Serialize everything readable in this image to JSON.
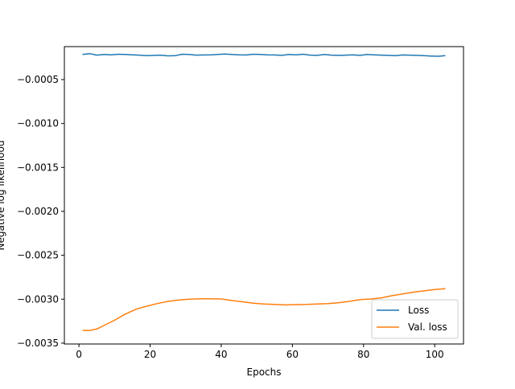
{
  "chart_data": {
    "type": "line",
    "title": "",
    "xlabel": "Epochs",
    "ylabel": "Negative log likelihood",
    "xlim": [
      -4.1,
      108.1
    ],
    "ylim": [
      -0.00351,
      -0.000125
    ],
    "x_ticks": [
      0,
      20,
      40,
      60,
      80,
      100
    ],
    "x_tick_labels": [
      "0",
      "20",
      "40",
      "60",
      "80",
      "100"
    ],
    "y_ticks": [
      -0.0005,
      -0.001,
      -0.0015,
      -0.002,
      -0.0025,
      -0.003,
      -0.0035
    ],
    "y_tick_labels": [
      "−0.0005",
      "−0.0010",
      "−0.0015",
      "−0.0020",
      "−0.0025",
      "−0.0030",
      "−0.0035"
    ],
    "grid": false,
    "legend_position": "lower-right",
    "series": [
      {
        "name": "Loss",
        "color": "#1f77b4",
        "x": [
          1,
          3,
          5,
          7,
          9,
          11,
          13,
          15,
          17,
          19,
          21,
          23,
          25,
          27,
          29,
          31,
          33,
          35,
          37,
          39,
          41,
          43,
          45,
          47,
          49,
          51,
          53,
          55,
          57,
          59,
          61,
          63,
          65,
          67,
          69,
          71,
          73,
          75,
          77,
          79,
          81,
          83,
          85,
          87,
          89,
          91,
          93,
          95,
          97,
          99,
          101,
          103
        ],
        "values": [
          -0.000215,
          -0.000205,
          -0.000222,
          -0.000215,
          -0.000218,
          -0.000212,
          -0.000215,
          -0.000218,
          -0.000222,
          -0.000228,
          -0.000225,
          -0.000222,
          -0.00023,
          -0.000228,
          -0.000212,
          -0.000215,
          -0.000222,
          -0.00022,
          -0.000218,
          -0.000215,
          -0.00021,
          -0.000215,
          -0.000218,
          -0.00022,
          -0.000212,
          -0.000215,
          -0.000218,
          -0.00022,
          -0.000225,
          -0.000215,
          -0.000218,
          -0.000212,
          -0.000222,
          -0.000225,
          -0.000215,
          -0.000222,
          -0.000225,
          -0.000222,
          -0.000218,
          -0.000225,
          -0.000215,
          -0.000218,
          -0.000222,
          -0.000225,
          -0.000228,
          -0.00022,
          -0.000222,
          -0.000225,
          -0.000228,
          -0.000232,
          -0.000235,
          -0.000228
        ]
      },
      {
        "name": "Val. loss",
        "color": "#ff7f0e",
        "x": [
          1,
          3,
          5,
          7,
          10,
          13,
          16,
          19,
          22,
          25,
          28,
          31,
          34,
          37,
          40,
          43,
          46,
          49,
          52,
          55,
          58,
          61,
          64,
          67,
          70,
          73,
          76,
          79,
          82,
          85,
          88,
          91,
          94,
          97,
          100,
          103
        ],
        "values": [
          -0.003355,
          -0.003355,
          -0.00334,
          -0.0033,
          -0.00324,
          -0.00317,
          -0.003115,
          -0.00308,
          -0.00305,
          -0.003025,
          -0.00301,
          -0.003,
          -0.002995,
          -0.002995,
          -0.002998,
          -0.003015,
          -0.00303,
          -0.003045,
          -0.003055,
          -0.00306,
          -0.003065,
          -0.003062,
          -0.00306,
          -0.003055,
          -0.00305,
          -0.00304,
          -0.003025,
          -0.003005,
          -0.002998,
          -0.002985,
          -0.00296,
          -0.00294,
          -0.00292,
          -0.002905,
          -0.00289,
          -0.00288
        ]
      }
    ]
  }
}
